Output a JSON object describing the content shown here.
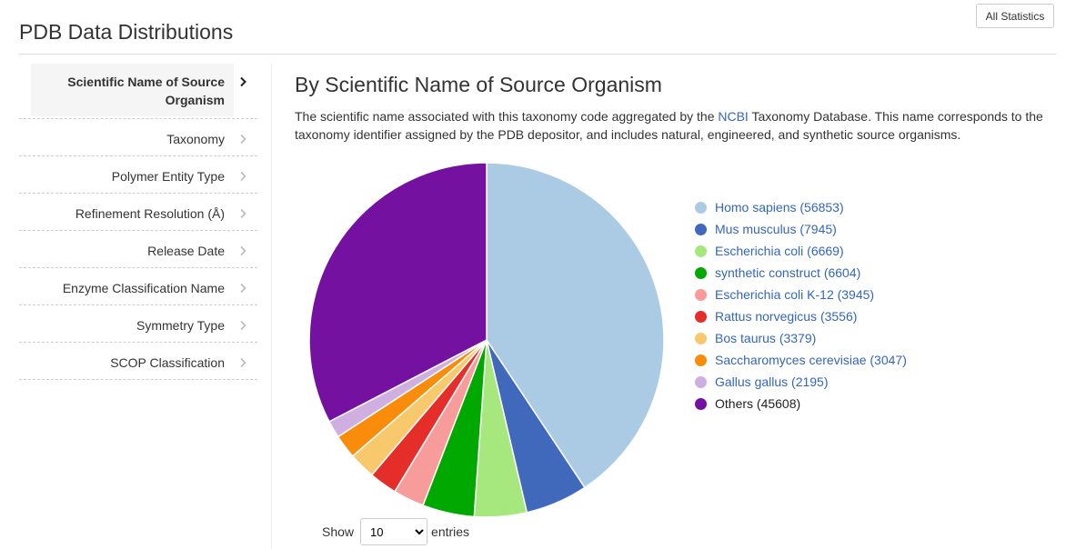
{
  "header": {
    "title": "PDB Data Distributions",
    "all_statistics_label": "All Statistics"
  },
  "sidebar": {
    "items": [
      {
        "label_line1": "Scientific Name of Source",
        "label_line2": "Organism",
        "active": true
      },
      {
        "label": "Taxonomy"
      },
      {
        "label": "Polymer Entity Type"
      },
      {
        "label": "Refinement Resolution (Å)"
      },
      {
        "label": "Release Date"
      },
      {
        "label": "Enzyme Classification Name"
      },
      {
        "label": "Symmetry Type"
      },
      {
        "label": "SCOP Classification"
      }
    ]
  },
  "main": {
    "title": "By Scientific Name of Source Organism",
    "description_pre": "The scientific name associated with this taxonomy code aggregated by the ",
    "description_link": "NCBI",
    "description_post": " Taxonomy Database. This name corresponds to the taxonomy identifier assigned by the PDB depositor, and includes natural, engineered, and synthetic source organisms.",
    "entries": {
      "show_label": "Show",
      "selected": "10",
      "options": [
        "10"
      ],
      "entries_label": "entries"
    }
  },
  "chart_data": {
    "type": "pie",
    "title": "",
    "legend_position": "right",
    "slices": [
      {
        "name": "Homo sapiens",
        "value": 56853,
        "color": "#abcae4",
        "label": "Homo sapiens (56853)"
      },
      {
        "name": "Mus musculus",
        "value": 7945,
        "color": "#4169bb",
        "label": "Mus musculus (7945)"
      },
      {
        "name": "Escherichia coli",
        "value": 6669,
        "color": "#a6e87e",
        "label": "Escherichia coli (6669)"
      },
      {
        "name": "synthetic construct",
        "value": 6604,
        "color": "#00a800",
        "label": "synthetic construct (6604)"
      },
      {
        "name": "Escherichia coli K-12",
        "value": 3945,
        "color": "#f79c9a",
        "label": "Escherichia coli K-12 (3945)"
      },
      {
        "name": "Rattus norvegicus",
        "value": 3556,
        "color": "#e52e2a",
        "label": "Rattus norvegicus (3556)"
      },
      {
        "name": "Bos taurus",
        "value": 3379,
        "color": "#f7c96c",
        "label": "Bos taurus (3379)"
      },
      {
        "name": "Saccharomyces cerevisiae",
        "value": 3047,
        "color": "#f98c0a",
        "label": "Saccharomyces cerevisiae (3047)"
      },
      {
        "name": "Gallus gallus",
        "value": 2195,
        "color": "#cfaee0",
        "label": "Gallus gallus (2195)"
      },
      {
        "name": "Others",
        "value": 45608,
        "color": "#7411a0",
        "label": "Others (45608)"
      }
    ]
  }
}
